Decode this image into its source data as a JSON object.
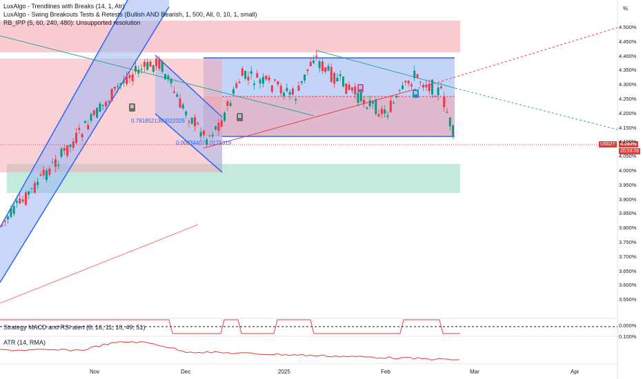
{
  "legend": {
    "line1": "LuxAlgo - Trendlines with Breaks (14, 1, Atr)",
    "line2": "LuxAlgo - Swing Breakouts Tests & Retests (Bullish AND Bearish, 1, 500, All, 0, 10, 1, small)",
    "line3": "RB_IPP (5, 60, 240, 480): Unsupported resolution"
  },
  "axis_unit": "%",
  "y_ticks": [
    "4.500%",
    "4.450%",
    "4.400%",
    "4.350%",
    "4.300%",
    "4.250%",
    "4.200%",
    "4.150%",
    "4.100%",
    "4.050%",
    "4.000%",
    "3.950%",
    "3.900%",
    "3.850%",
    "3.800%",
    "3.750%",
    "3.700%",
    "3.650%",
    "3.600%",
    "3.550%"
  ],
  "x_ticks": [
    "Nov",
    "Dec",
    "2025",
    "Feb",
    "Mar",
    "Apr"
  ],
  "price_label": {
    "symbol": "US02Y",
    "value": "4.094%",
    "countdown": "20:53:26"
  },
  "annotations": {
    "fib1": "0.7818521360022329",
    "fib2": "0.00834407...0171319"
  },
  "panes": {
    "macd": {
      "title": "Strategy MACD and RSI alert (8, 16, 11, 10, 49, 51)",
      "ticks": [
        "0.000%",
        "0.100%"
      ]
    },
    "atr": {
      "title": "ATR (14, RMA)"
    }
  },
  "markers": {
    "b": "B"
  },
  "colors": {
    "bull": "#089981",
    "bear": "#f23645",
    "blue": "#2962ff",
    "atr": "#e53935"
  }
}
